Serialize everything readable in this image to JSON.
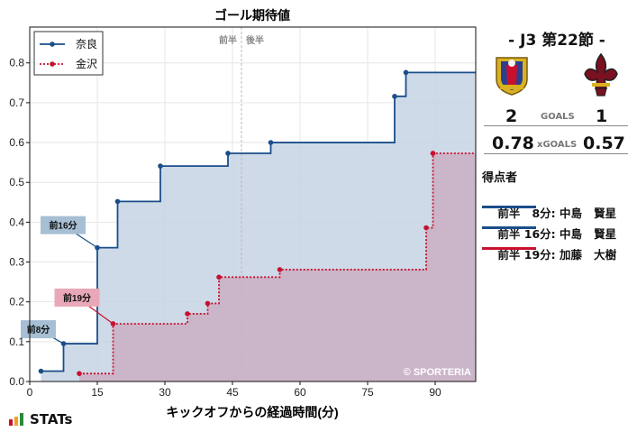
{
  "chart_data": {
    "type": "line",
    "title": "ゴール期待値",
    "xlabel": "キックオフからの経過時間(分)",
    "ylabel": "",
    "xlim": [
      0,
      99
    ],
    "ylim": [
      0,
      0.89
    ],
    "x_ticks": [
      0,
      15,
      30,
      45,
      60,
      75,
      90
    ],
    "y_ticks": [
      0,
      0.1,
      0.2,
      0.3,
      0.4,
      0.5,
      0.6,
      0.7,
      0.8
    ],
    "grid": true,
    "legend_position": "top-left",
    "halftime_labels": {
      "first": "前半",
      "second": "後半"
    },
    "halftime_x": 47,
    "watermark": "© SPORTERIA",
    "series": [
      {
        "name": "奈良",
        "color": "#1a4e8a",
        "fill": "#c6d3e3",
        "style": "solid",
        "points": [
          [
            2.5,
            0.026
          ],
          [
            7.5,
            0.095
          ],
          [
            15,
            0.336
          ],
          [
            19.5,
            0.452
          ],
          [
            29,
            0.541
          ],
          [
            44,
            0.573
          ],
          [
            53.5,
            0.6
          ],
          [
            81,
            0.716
          ],
          [
            83.5,
            0.776
          ],
          [
            99,
            0.776
          ]
        ],
        "start": [
          2.5,
          0.026
        ]
      },
      {
        "name": "金沢",
        "color": "#c8102e",
        "fill": "#c9a8bd",
        "style": "dotted",
        "points": [
          [
            11,
            0.02
          ],
          [
            18.5,
            0.145
          ],
          [
            35,
            0.17
          ],
          [
            39.5,
            0.196
          ],
          [
            42,
            0.262
          ],
          [
            55.5,
            0.281
          ],
          [
            88,
            0.386
          ],
          [
            89.5,
            0.573
          ],
          [
            99,
            0.573
          ]
        ],
        "start": [
          11,
          0.02
        ]
      }
    ],
    "annotations": [
      {
        "text": "前8分",
        "x": 7.5,
        "y": 0.095,
        "color": "#a7bfd4",
        "team": "nara"
      },
      {
        "text": "前16分",
        "x": 15,
        "y": 0.336,
        "color": "#a7bfd4",
        "team": "nara"
      },
      {
        "text": "前19分",
        "x": 18.5,
        "y": 0.145,
        "color": "#e8a8b8",
        "team": "kanazawa"
      }
    ]
  },
  "panel": {
    "match_title": "- J3 第22節 -",
    "home_goals": "2",
    "goals_label": "GOALS",
    "away_goals": "1",
    "home_xg": "0.78",
    "xg_label": "xGOALS",
    "away_xg": "0.57",
    "scorers_title": "得点者",
    "scorers": [
      {
        "text": "前半   8分: 中島   賢星",
        "color": "#1a4e8a"
      },
      {
        "text": "前半 16分: 中島   賢星",
        "color": "#1a4e8a"
      },
      {
        "text": "前半 19分: 加藤   大樹",
        "color": "#c8102e"
      }
    ],
    "home_crest": "nara-club-crest",
    "away_crest": "kanazawa-fleur-crest"
  },
  "footer": {
    "brand": "STATs"
  }
}
